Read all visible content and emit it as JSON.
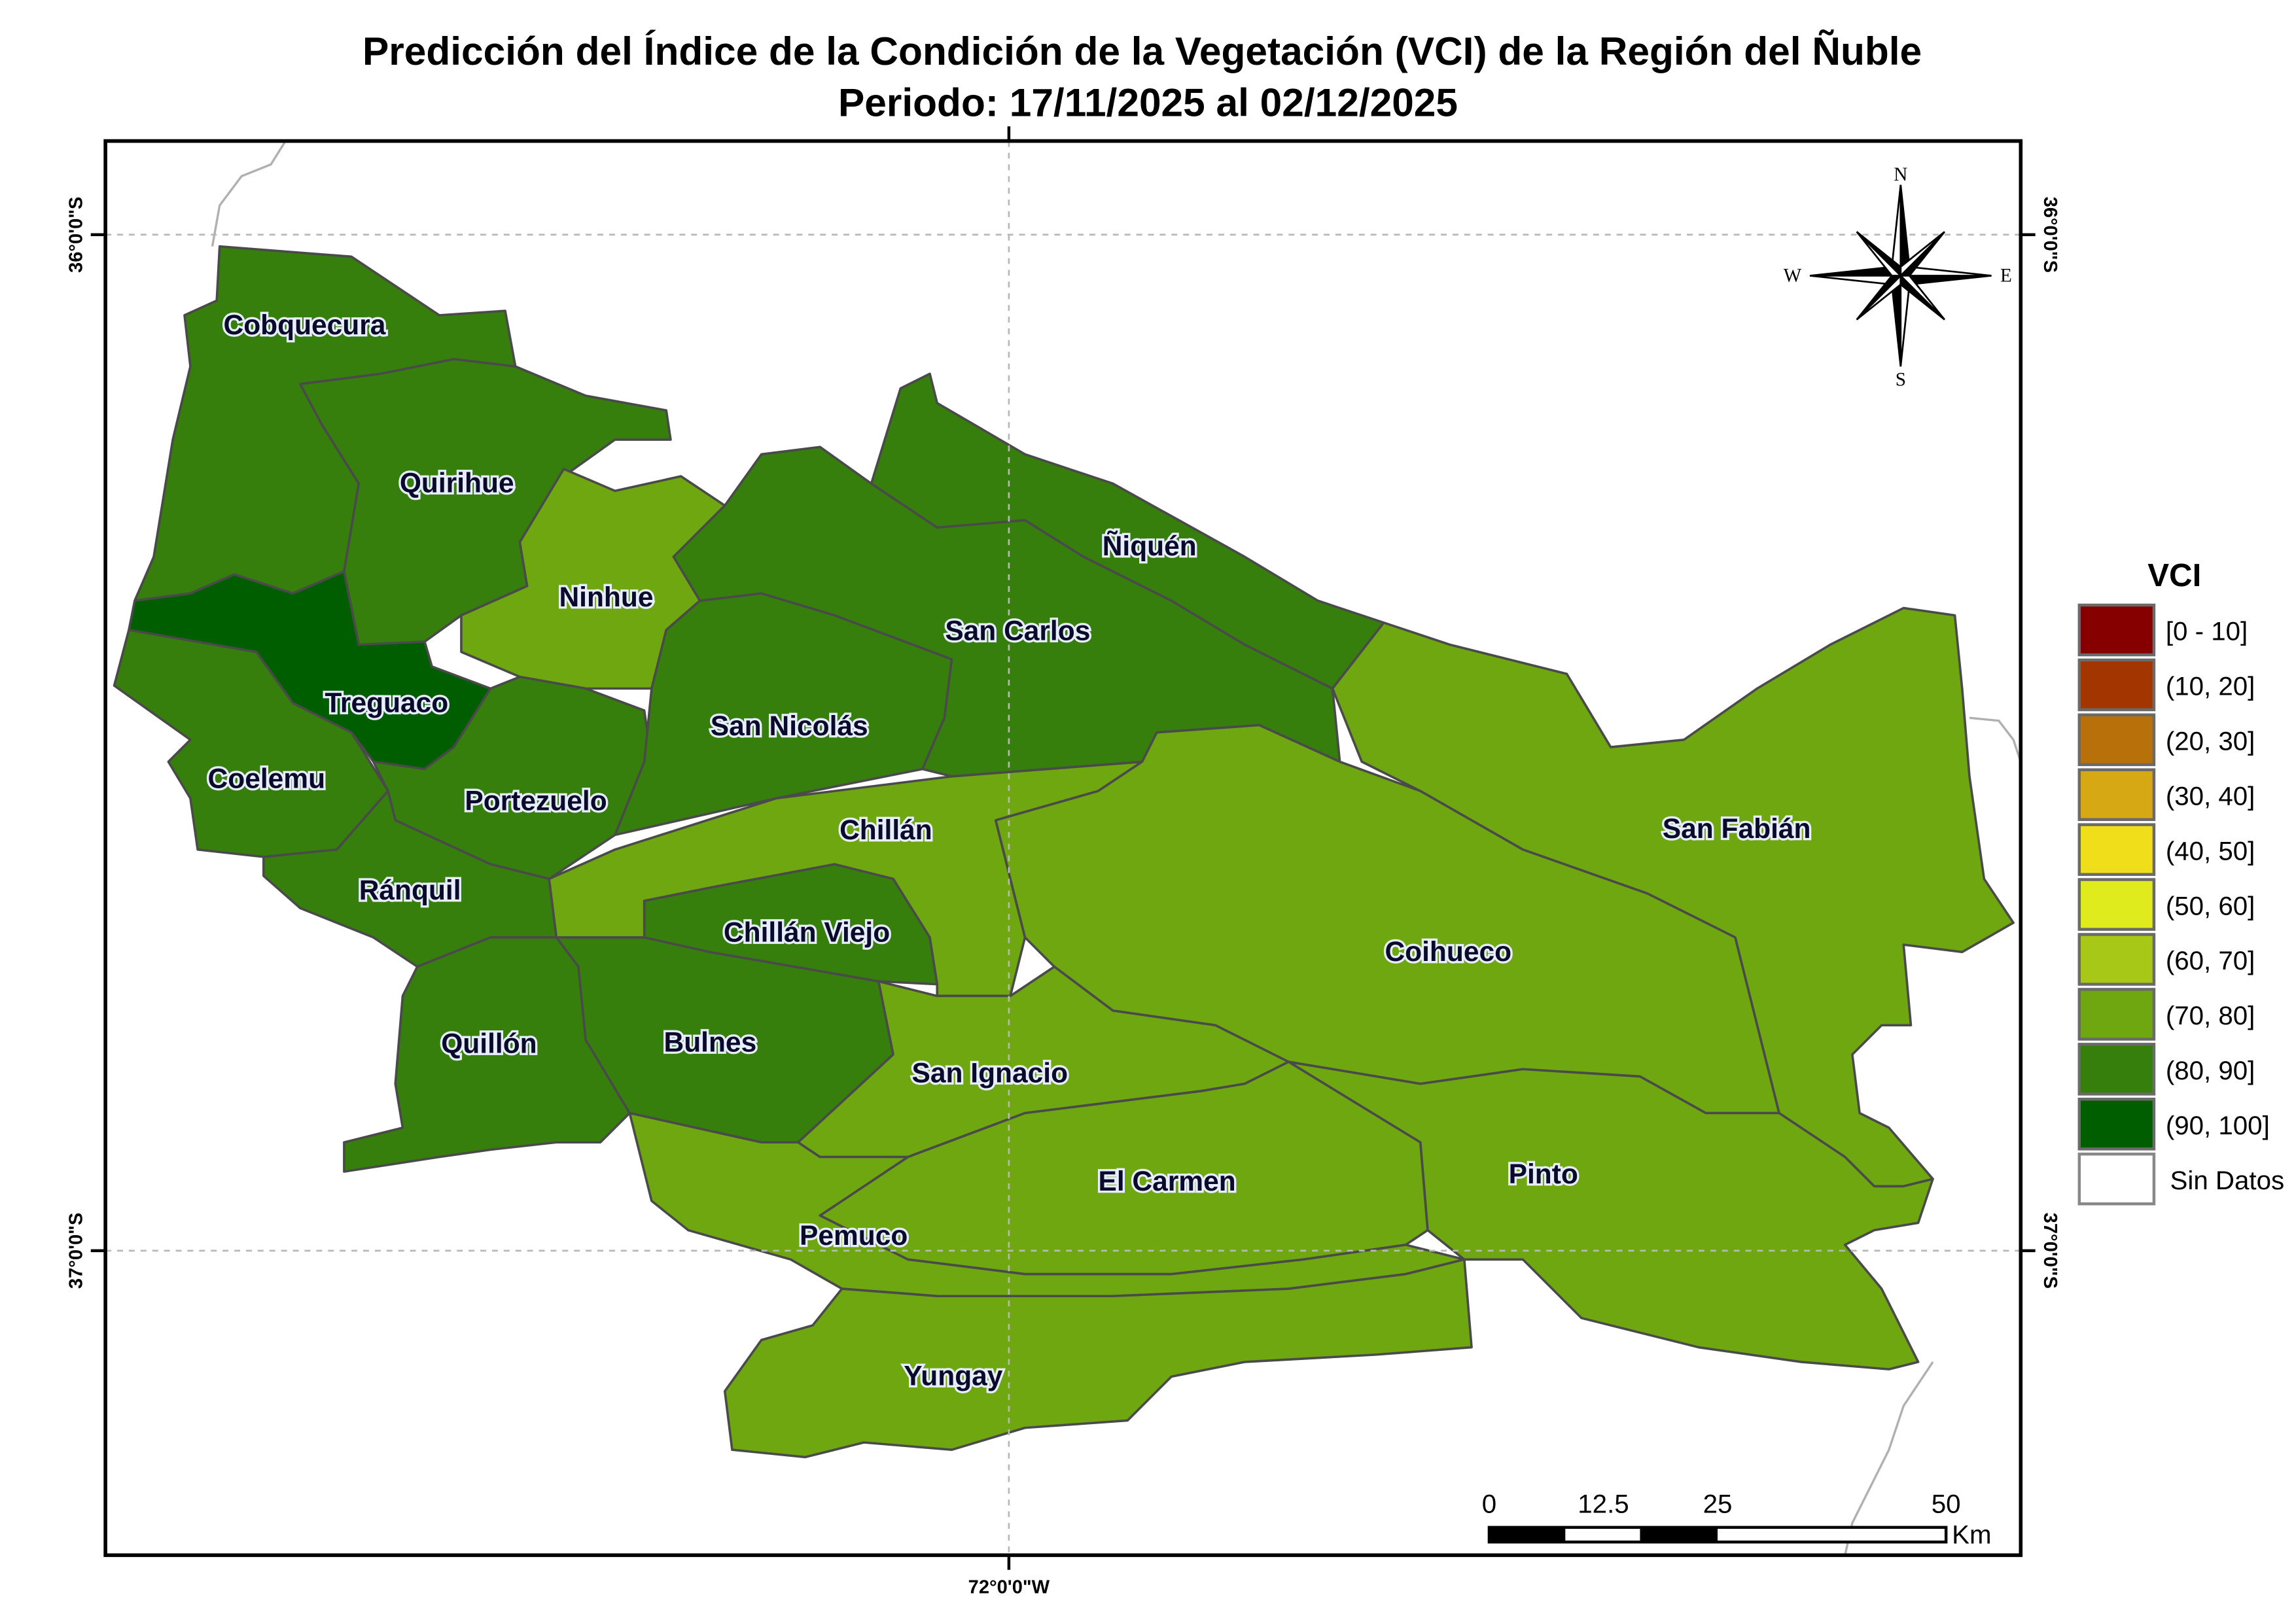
{
  "title": "Predicción del Índice de la Condición de la Vegetación (VCI) de la Región del Ñuble",
  "subtitle": "Periodo: 17/11/2025 al 02/12/2025",
  "graticule": {
    "lat_top": "36°0'0\"S",
    "lat_bottom": "37°0'0\"S",
    "lon": "72°0'0\"W"
  },
  "north_arrow": {
    "n": "N",
    "s": "S",
    "e": "E",
    "w": "W"
  },
  "legend": {
    "title": "VCI",
    "classes": [
      {
        "label": "[0 - 10]",
        "color": "#870000"
      },
      {
        "label": "(10, 20]",
        "color": "#a33600"
      },
      {
        "label": "(20, 30]",
        "color": "#b8700a"
      },
      {
        "label": "(30, 40]",
        "color": "#d6a814"
      },
      {
        "label": "(40, 50]",
        "color": "#f0de1a"
      },
      {
        "label": "(50, 60]",
        "color": "#dfeb1c"
      },
      {
        "label": "(60, 70]",
        "color": "#a8c818"
      },
      {
        "label": "(70, 80]",
        "color": "#6ea710"
      },
      {
        "label": "(80, 90]",
        "color": "#367f0d"
      },
      {
        "label": "(90, 100]",
        "color": "#005e00"
      }
    ],
    "no_data": {
      "label": "Sin Datos",
      "color": "#ffffff"
    }
  },
  "scale_bar": {
    "ticks": [
      "0",
      "12.5",
      "25",
      "50"
    ],
    "unit": "Km"
  },
  "comunas": [
    {
      "name": "Cobquecura",
      "vci_class": "(80, 90]"
    },
    {
      "name": "Quirihue",
      "vci_class": "(80, 90]"
    },
    {
      "name": "Ninhue",
      "vci_class": "(70, 80]"
    },
    {
      "name": "Treguaco",
      "vci_class": "(90, 100]"
    },
    {
      "name": "Coelemu",
      "vci_class": "(80, 90]"
    },
    {
      "name": "Portezuelo",
      "vci_class": "(80, 90]"
    },
    {
      "name": "Ránquil",
      "vci_class": "(80, 90]"
    },
    {
      "name": "Quillón",
      "vci_class": "(80, 90]"
    },
    {
      "name": "Bulnes",
      "vci_class": "(80, 90]"
    },
    {
      "name": "Chillán Viejo",
      "vci_class": "(80, 90]"
    },
    {
      "name": "Chillán",
      "vci_class": "(70, 80]"
    },
    {
      "name": "San Nicolás",
      "vci_class": "(80, 90]"
    },
    {
      "name": "San Carlos",
      "vci_class": "(80, 90]"
    },
    {
      "name": "Ñiquén",
      "vci_class": "(80, 90]"
    },
    {
      "name": "San Fabián",
      "vci_class": "(70, 80]"
    },
    {
      "name": "Coihueco",
      "vci_class": "(70, 80]"
    },
    {
      "name": "San Ignacio",
      "vci_class": "(70, 80]"
    },
    {
      "name": "Pinto",
      "vci_class": "(70, 80]"
    },
    {
      "name": "El Carmen",
      "vci_class": "(70, 80]"
    },
    {
      "name": "Pemuco",
      "vci_class": "(70, 80]"
    },
    {
      "name": "Yungay",
      "vci_class": "(70, 80]"
    }
  ]
}
